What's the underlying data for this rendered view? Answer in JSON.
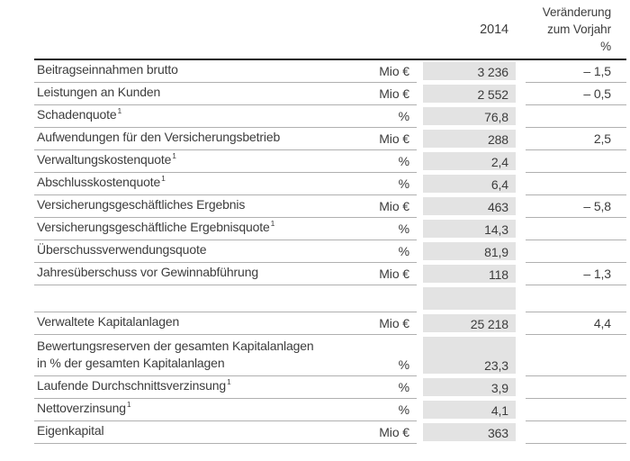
{
  "header": {
    "year": "2014",
    "change_line1": "Veränderung",
    "change_line2": "zum Vorjahr",
    "change_line3": "%"
  },
  "rows": [
    {
      "label": "Beitragseinnahmen brutto",
      "footnote": "",
      "unit": "Mio €",
      "value": "3 236",
      "change": "– 1,5"
    },
    {
      "label": "Leistungen an Kunden",
      "footnote": "",
      "unit": "Mio €",
      "value": "2 552",
      "change": "– 0,5"
    },
    {
      "label": "Schadenquote",
      "footnote": "1",
      "unit": "%",
      "value": "76,8",
      "change": ""
    },
    {
      "label": "Aufwendungen für den Versicherungsbetrieb",
      "footnote": "",
      "unit": "Mio €",
      "value": "288",
      "change": "2,5"
    },
    {
      "label": "Verwaltungskostenquote",
      "footnote": "1",
      "unit": "%",
      "value": "2,4",
      "change": ""
    },
    {
      "label": "Abschlusskostenquote",
      "footnote": "1",
      "unit": "%",
      "value": "6,4",
      "change": ""
    },
    {
      "label": "Versicherungsgeschäftliches Ergebnis",
      "footnote": "",
      "unit": "Mio €",
      "value": "463",
      "change": "– 5,8"
    },
    {
      "label": "Versicherungsgeschäftliche Ergebnisquote",
      "footnote": "1",
      "unit": "%",
      "value": "14,3",
      "change": ""
    },
    {
      "label": "Überschussverwendungsquote",
      "footnote": "",
      "unit": "%",
      "value": "81,9",
      "change": ""
    },
    {
      "label": "Jahresüberschuss vor Gewinnabführung",
      "footnote": "",
      "unit": "Mio €",
      "value": "118",
      "change": "– 1,3"
    },
    {
      "type": "spacer"
    },
    {
      "label": "Verwaltete Kapitalanlagen",
      "footnote": "",
      "unit": "Mio €",
      "value": "25 218",
      "change": "4,4"
    },
    {
      "type": "twoline",
      "label": "Bewertungsreserven der gesamten Kapitalanlagen",
      "label2": "in % der gesamten Kapitalanlagen",
      "footnote": "",
      "unit": "%",
      "value": "23,3",
      "change": ""
    },
    {
      "label": "Laufende Durchschnittsverzinsung",
      "footnote": "1",
      "unit": "%",
      "value": "3,9",
      "change": ""
    },
    {
      "label": "Nettoverzinsung",
      "footnote": "1",
      "unit": "%",
      "value": "4,1",
      "change": ""
    },
    {
      "label": "Eigenkapital",
      "footnote": "",
      "unit": "Mio €",
      "value": "363",
      "change": ""
    }
  ]
}
